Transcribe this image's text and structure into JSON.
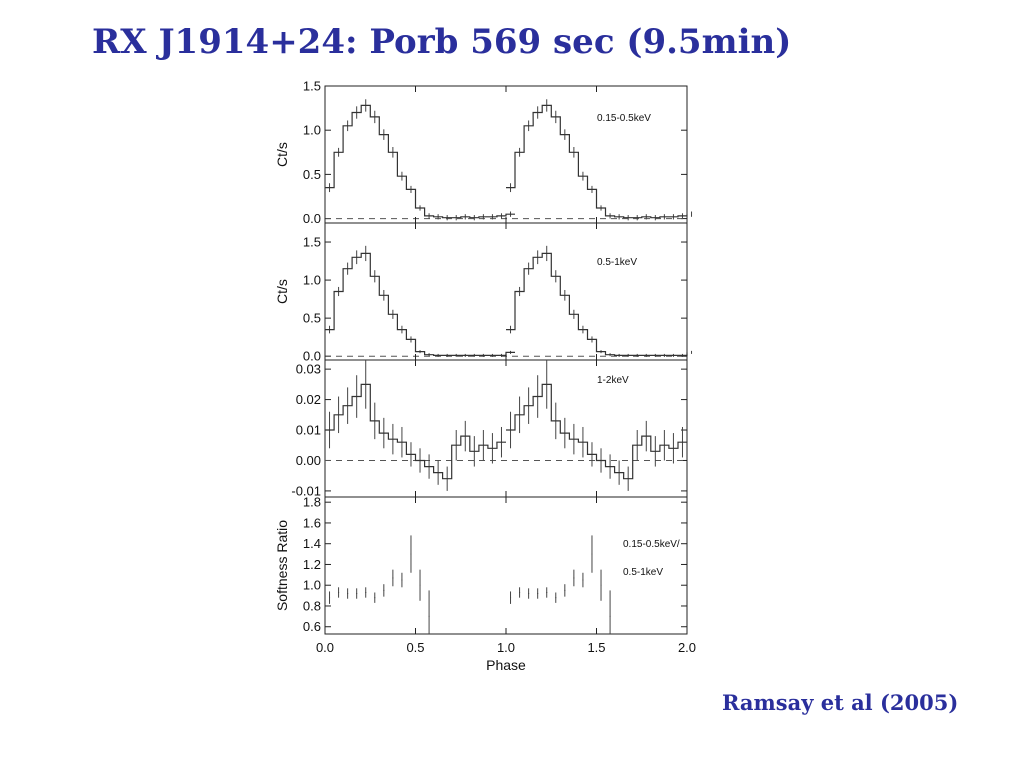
{
  "slide": {
    "title": "RX J1914+24: Porb 569 sec (9.5min)",
    "citation": "Ramsay et al (2005)"
  },
  "chart_data": {
    "type": "line",
    "xlabel": "Phase",
    "xlim": [
      0.0,
      2.0
    ],
    "xticks": [
      "0.0",
      "0.5",
      "1.0",
      "1.5",
      "2.0"
    ],
    "panels": [
      {
        "label": "0.15-0.5keV",
        "ylabel": "Ct/s",
        "ylim": [
          -0.05,
          1.5
        ],
        "yticks": [
          "0.0",
          "0.5",
          "1.0",
          "1.5"
        ],
        "ytick_values": [
          0.0,
          0.5,
          1.0,
          1.5
        ],
        "zero_line": true,
        "style": "step",
        "phase": [
          0.0,
          0.05,
          0.1,
          0.15,
          0.2,
          0.25,
          0.3,
          0.35,
          0.4,
          0.45,
          0.5,
          0.55,
          0.6,
          0.65,
          0.7,
          0.75,
          0.8,
          0.85,
          0.9,
          0.95,
          1.0
        ],
        "values": [
          0.35,
          0.75,
          1.05,
          1.2,
          1.28,
          1.15,
          0.95,
          0.75,
          0.48,
          0.33,
          0.12,
          0.03,
          0.02,
          0.01,
          0.01,
          0.02,
          0.01,
          0.02,
          0.02,
          0.03,
          0.05
        ],
        "errors": [
          0.05,
          0.05,
          0.06,
          0.07,
          0.07,
          0.07,
          0.06,
          0.06,
          0.05,
          0.04,
          0.03,
          0.03,
          0.03,
          0.03,
          0.03,
          0.03,
          0.03,
          0.03,
          0.03,
          0.03,
          0.03
        ]
      },
      {
        "label": "0.5-1keV",
        "ylabel": "Ct/s",
        "ylim": [
          -0.05,
          1.75
        ],
        "yticks": [
          "0.0",
          "0.5",
          "1.0",
          "1.5"
        ],
        "ytick_values": [
          0.0,
          0.5,
          1.0,
          1.5
        ],
        "zero_line": true,
        "style": "step",
        "phase": [
          0.0,
          0.05,
          0.1,
          0.15,
          0.2,
          0.25,
          0.3,
          0.35,
          0.4,
          0.45,
          0.5,
          0.55,
          0.6,
          0.65,
          0.7,
          0.75,
          0.8,
          0.85,
          0.9,
          0.95,
          1.0
        ],
        "values": [
          0.35,
          0.85,
          1.15,
          1.3,
          1.35,
          1.05,
          0.8,
          0.55,
          0.35,
          0.22,
          0.06,
          0.02,
          0.01,
          0.01,
          0.01,
          0.01,
          0.01,
          0.01,
          0.01,
          0.01,
          0.05
        ],
        "errors": [
          0.05,
          0.06,
          0.08,
          0.09,
          0.1,
          0.08,
          0.07,
          0.06,
          0.05,
          0.04,
          0.02,
          0.02,
          0.02,
          0.02,
          0.02,
          0.02,
          0.02,
          0.02,
          0.02,
          0.02,
          0.02
        ]
      },
      {
        "label": "1-2keV",
        "ylabel": "",
        "ylim": [
          -0.012,
          0.033
        ],
        "yticks": [
          "-0.01",
          "0.00",
          "0.01",
          "0.02",
          "0.03"
        ],
        "ytick_values": [
          -0.01,
          0.0,
          0.01,
          0.02,
          0.03
        ],
        "zero_line": true,
        "style": "step",
        "phase": [
          0.0,
          0.05,
          0.1,
          0.15,
          0.2,
          0.25,
          0.3,
          0.35,
          0.4,
          0.45,
          0.5,
          0.55,
          0.6,
          0.65,
          0.7,
          0.75,
          0.8,
          0.85,
          0.9,
          0.95
        ],
        "values": [
          0.01,
          0.015,
          0.018,
          0.021,
          0.025,
          0.013,
          0.009,
          0.007,
          0.006,
          0.002,
          0.0,
          -0.002,
          -0.004,
          -0.006,
          0.005,
          0.008,
          0.003,
          0.005,
          0.004,
          0.006
        ],
        "errors": [
          0.006,
          0.006,
          0.006,
          0.007,
          0.008,
          0.006,
          0.005,
          0.005,
          0.005,
          0.004,
          0.004,
          0.004,
          0.004,
          0.004,
          0.005,
          0.005,
          0.005,
          0.005,
          0.005,
          0.005
        ]
      },
      {
        "label": "0.15-0.5keV/",
        "label2": "0.5-1keV",
        "ylabel": "Softness Ratio",
        "ylim": [
          0.53,
          1.85
        ],
        "yticks": [
          "0.6",
          "0.8",
          "1.0",
          "1.2",
          "1.4",
          "1.6",
          "1.8"
        ],
        "ytick_values": [
          0.6,
          0.8,
          1.0,
          1.2,
          1.4,
          1.6,
          1.8
        ],
        "zero_line": false,
        "style": "errorbar",
        "phase": [
          0.0,
          0.05,
          0.1,
          0.15,
          0.2,
          0.25,
          0.3,
          0.35,
          0.4,
          0.45,
          0.5,
          0.55
        ],
        "values": [
          0.88,
          0.93,
          0.92,
          0.92,
          0.93,
          0.88,
          0.95,
          1.07,
          1.05,
          1.3,
          1.0,
          0.7
        ],
        "errors": [
          0.06,
          0.05,
          0.05,
          0.05,
          0.05,
          0.05,
          0.06,
          0.08,
          0.07,
          0.18,
          0.15,
          0.25
        ]
      }
    ]
  }
}
